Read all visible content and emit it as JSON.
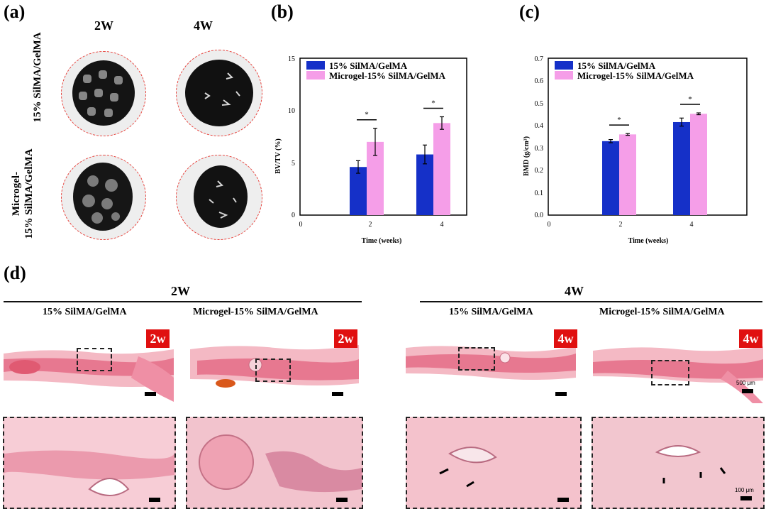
{
  "panels": {
    "a": {
      "label": "(a)",
      "columns": [
        "2W",
        "4W"
      ],
      "rows": [
        {
          "line1": "15% SilMA/GelMA",
          "line2": ""
        },
        {
          "line1": "Microgel-",
          "line2": "15% SilMA/GelMA"
        }
      ],
      "outline_color": "#e8403a"
    },
    "b": {
      "label": "(b)"
    },
    "c": {
      "label": "(c)"
    },
    "d": {
      "label": "(d)",
      "groups": [
        "2W",
        "4W"
      ],
      "subtitles": [
        "15% SilMA/GelMA",
        "Microgel-15% SilMA/GelMA",
        "15% SilMA/GelMA",
        "Microgel-15% SilMA/GelMA"
      ],
      "tags": [
        "2w",
        "2w",
        "4w",
        "4w"
      ],
      "scale_low": "500 μm",
      "scale_high": "100 μm",
      "tag_color": "#e01010"
    }
  },
  "chart_data": [
    {
      "type": "bar",
      "categories": [
        "2",
        "4"
      ],
      "x_ticks": [
        "0",
        "2",
        "4"
      ],
      "y_ticks": [
        "0",
        "5",
        "10",
        "15"
      ],
      "xlabel": "Time (weeks)",
      "ylabel": "BV/TV (%)",
      "ylim": [
        0,
        15
      ],
      "significance": [
        "*",
        "*"
      ],
      "series": [
        {
          "name": "15% SilMA/GelMA",
          "color": "#1530c8",
          "values": [
            4.6,
            5.8
          ],
          "errors": [
            0.6,
            0.9
          ]
        },
        {
          "name": "Microgel-15% SilMA/GelMA",
          "color": "#f59ee8",
          "values": [
            7.0,
            8.8
          ],
          "errors": [
            1.3,
            0.6
          ]
        }
      ],
      "legend": "top-left"
    },
    {
      "type": "bar",
      "categories": [
        "2",
        "4"
      ],
      "x_ticks": [
        "0",
        "2",
        "4"
      ],
      "y_ticks": [
        "0.0",
        "0.1",
        "0.2",
        "0.3",
        "0.4",
        "0.5",
        "0.6",
        "0.7"
      ],
      "xlabel": "Time (weeks)",
      "ylabel": "BMD (g/cm³)",
      "ylim": [
        0,
        0.7
      ],
      "significance": [
        "*",
        "*"
      ],
      "series": [
        {
          "name": "15% SilMA/GelMA",
          "color": "#1530c8",
          "values": [
            0.33,
            0.415
          ],
          "errors": [
            0.007,
            0.018
          ]
        },
        {
          "name": "Microgel-15% SilMA/GelMA",
          "color": "#f59ee8",
          "values": [
            0.36,
            0.452
          ],
          "errors": [
            0.004,
            0.004
          ]
        }
      ],
      "legend": "top-left"
    }
  ]
}
